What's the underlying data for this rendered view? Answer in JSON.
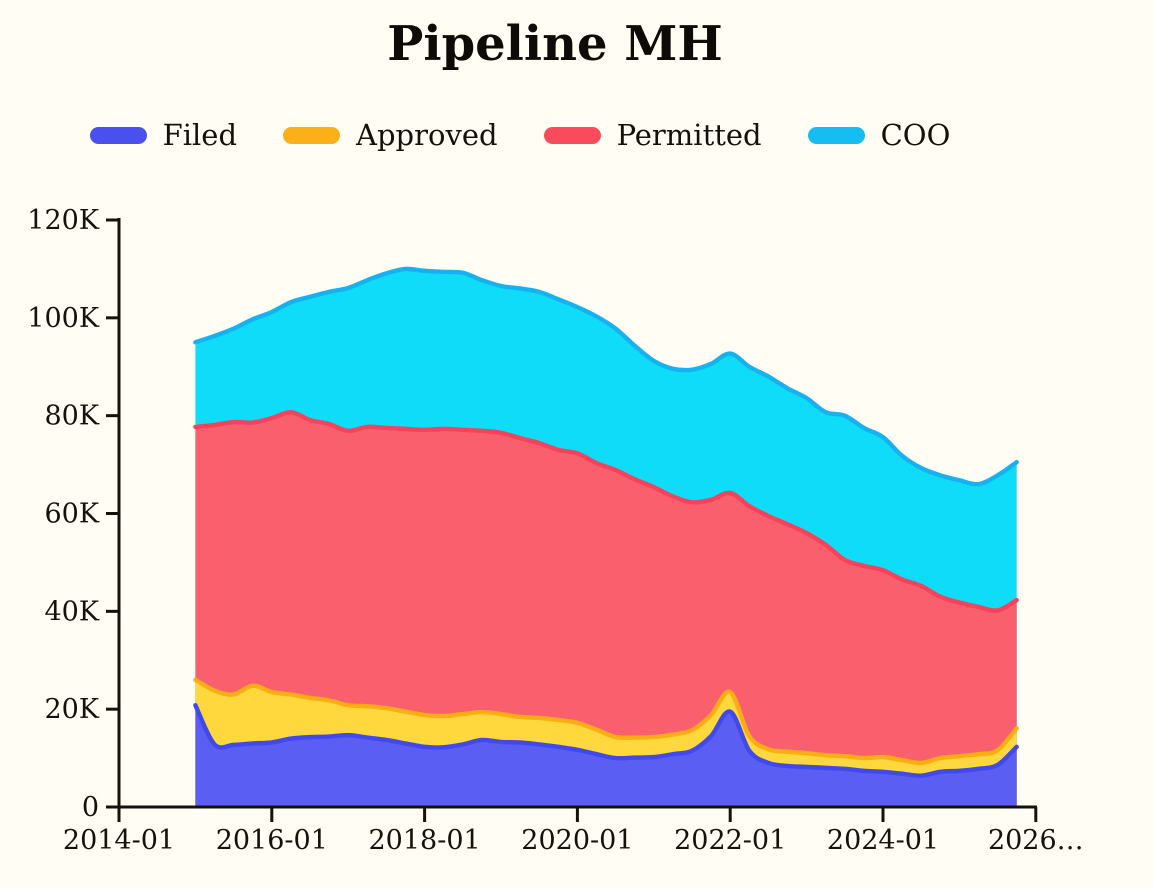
{
  "title": "Pipeline MH",
  "legend": [
    {
      "label": "Filed",
      "color": "#4a50ee"
    },
    {
      "label": "Approved",
      "color": "#fbb018"
    },
    {
      "label": "Permitted",
      "color": "#fb4a5c"
    },
    {
      "label": "COO",
      "color": "#16bdf2"
    }
  ],
  "chart_data": {
    "type": "area",
    "stacked": true,
    "title": "Pipeline MH",
    "xlabel": "",
    "ylabel": "",
    "ylim": [
      0,
      120000
    ],
    "grid": false,
    "legend_position": "top",
    "y_ticks": [
      {
        "label": "0",
        "value": 0
      },
      {
        "label": "20K",
        "value": 20000
      },
      {
        "label": "40K",
        "value": 40000
      },
      {
        "label": "60K",
        "value": 60000
      },
      {
        "label": "80K",
        "value": 80000
      },
      {
        "label": "100K",
        "value": 100000
      },
      {
        "label": "120K",
        "value": 120000
      }
    ],
    "x_ticks": [
      {
        "label": "2014-01",
        "date": "2014-01"
      },
      {
        "label": "2016-01",
        "date": "2016-01"
      },
      {
        "label": "2018-01",
        "date": "2018-01"
      },
      {
        "label": "2020-01",
        "date": "2020-01"
      },
      {
        "label": "2022-01",
        "date": "2022-01"
      },
      {
        "label": "2024-01",
        "date": "2024-01"
      },
      {
        "label": "2026…",
        "date": "2026-01"
      }
    ],
    "x": [
      "2015-01",
      "2015-04",
      "2015-07",
      "2015-10",
      "2016-01",
      "2016-04",
      "2016-07",
      "2016-10",
      "2017-01",
      "2017-04",
      "2017-07",
      "2017-10",
      "2018-01",
      "2018-04",
      "2018-07",
      "2018-10",
      "2019-01",
      "2019-04",
      "2019-07",
      "2019-10",
      "2020-01",
      "2020-04",
      "2020-07",
      "2020-10",
      "2021-01",
      "2021-04",
      "2021-07",
      "2021-10",
      "2022-01",
      "2022-04",
      "2022-07",
      "2022-10",
      "2023-01",
      "2023-04",
      "2023-07",
      "2023-10",
      "2024-01",
      "2024-04",
      "2024-07",
      "2024-10",
      "2025-01",
      "2025-04",
      "2025-07",
      "2025-10"
    ],
    "series": [
      {
        "name": "Filed",
        "color": "#4149ec",
        "fill": "#5a5ef2",
        "values": [
          20800,
          12800,
          12700,
          13000,
          13200,
          14000,
          14300,
          14400,
          14700,
          14200,
          13700,
          13000,
          12300,
          12200,
          12800,
          13700,
          13300,
          13200,
          12800,
          12300,
          11700,
          10800,
          10000,
          10100,
          10200,
          10800,
          11500,
          14500,
          19500,
          11500,
          9000,
          8400,
          8200,
          8000,
          7800,
          7400,
          7200,
          6800,
          6400,
          7200,
          7400,
          7800,
          8600,
          12300
        ]
      },
      {
        "name": "Approved",
        "color": "#fbad15",
        "fill": "#ffd83e",
        "values": [
          5200,
          11000,
          10300,
          11800,
          10300,
          9000,
          8000,
          7400,
          6100,
          6400,
          6500,
          6500,
          6500,
          6400,
          6200,
          5700,
          5700,
          5200,
          5400,
          5500,
          5500,
          5000,
          4300,
          4100,
          4100,
          4000,
          4200,
          4300,
          4000,
          3000,
          2800,
          2900,
          2800,
          2600,
          2600,
          2600,
          3000,
          2800,
          2600,
          2800,
          3000,
          3000,
          3000,
          3800
        ]
      },
      {
        "name": "Permitted",
        "color": "#f8415a",
        "fill": "#f95f6d",
        "values": [
          51700,
          54300,
          55700,
          53800,
          56000,
          57700,
          56800,
          56500,
          56100,
          57100,
          57300,
          57800,
          58300,
          58700,
          58100,
          57500,
          57500,
          57000,
          56200,
          55200,
          55100,
          54500,
          54600,
          52800,
          51100,
          48700,
          46600,
          44000,
          40700,
          47000,
          47700,
          46500,
          45000,
          43000,
          40100,
          39300,
          38200,
          36900,
          36200,
          33000,
          31400,
          30100,
          28600,
          26200
        ]
      },
      {
        "name": "COO",
        "color": "#16b2ef",
        "fill": "#0edcf8",
        "values": [
          17300,
          18200,
          19100,
          21100,
          21700,
          22500,
          25200,
          27000,
          29200,
          30000,
          31600,
          32700,
          32500,
          32100,
          32100,
          30800,
          30000,
          30600,
          30900,
          30800,
          29900,
          30000,
          28900,
          27300,
          25800,
          26100,
          27100,
          27800,
          28500,
          28500,
          28500,
          27800,
          27600,
          27100,
          29500,
          28200,
          27200,
          25300,
          24100,
          24800,
          25000,
          25100,
          27600,
          28200
        ]
      }
    ]
  }
}
